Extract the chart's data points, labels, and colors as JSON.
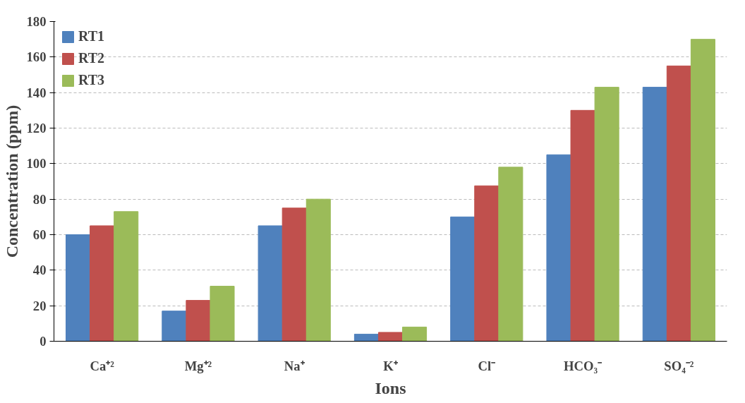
{
  "chart_data": {
    "type": "bar",
    "xlabel": "Ions",
    "ylabel": "Concentration (ppm)",
    "categories": [
      "Ca⁺²",
      "Mg⁺²",
      "Na⁺",
      "K⁺",
      "Cl⁻",
      "HCO₃⁻",
      "SO₄⁻²"
    ],
    "series": [
      {
        "name": "RT1",
        "color": "#4f81bd",
        "values": [
          60,
          17,
          65,
          4,
          70,
          105,
          143
        ]
      },
      {
        "name": "RT2",
        "color": "#c0504d",
        "values": [
          65,
          23,
          75,
          5,
          87.5,
          130,
          155
        ]
      },
      {
        "name": "RT3",
        "color": "#9bbb59",
        "values": [
          73,
          31,
          80,
          8,
          98,
          143,
          170
        ]
      }
    ],
    "ylim": [
      0,
      180
    ],
    "yticks": [
      0,
      20,
      40,
      60,
      80,
      100,
      120,
      140,
      160,
      180
    ],
    "grid": "y",
    "legend": "top left"
  }
}
